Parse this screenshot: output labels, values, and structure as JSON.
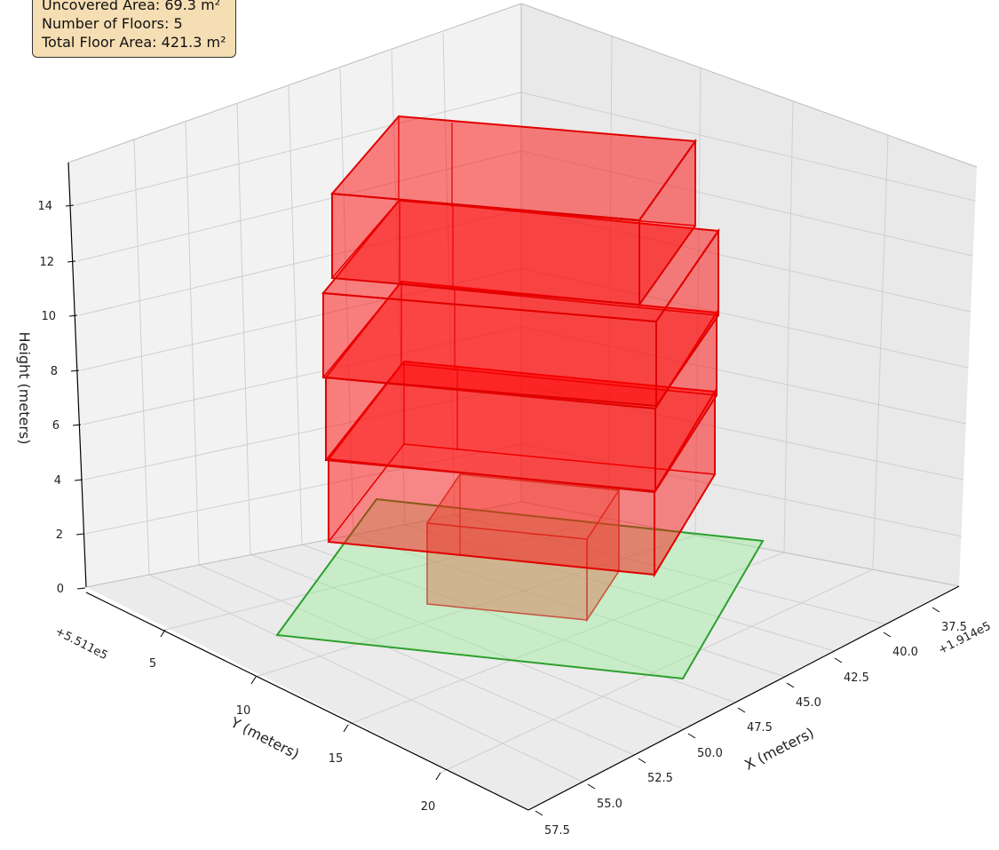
{
  "info_box": [
    "Uncovered Area: 69.3 m²",
    "Number of Floors: 5",
    "Total Floor Area: 421.3 m²"
  ],
  "chart_data": {
    "type": "3d-volume",
    "title": "",
    "xlabel": "X (meters)",
    "ylabel": "Y (meters)",
    "zlabel": "Height (meters)",
    "x_offset_label": "+1.914e5",
    "y_offset_label": "+5.511e5",
    "x_ticks": [
      "37.5",
      "40.0",
      "42.5",
      "45.0",
      "47.5",
      "50.0",
      "52.5",
      "55.0",
      "57.5"
    ],
    "y_ticks": [
      "5",
      "10",
      "15",
      "20"
    ],
    "z_ticks": [
      "0",
      "2",
      "4",
      "6",
      "8",
      "10",
      "12",
      "14"
    ],
    "zlim": [
      0,
      15
    ],
    "grid": true,
    "colors": {
      "floors_fill": "#ff0000",
      "floors_edge": "#e00000",
      "footprint_fill": "#90ee90",
      "footprint_edge": "#2ca02c",
      "ground_block_edge": "#c8503c"
    },
    "series": [
      {
        "name": "",
        "kind": "footprint",
        "z": 0
      },
      {
        "name": "",
        "kind": "ground-block",
        "z_range": [
          0,
          3
        ]
      },
      {
        "name": "",
        "kind": "floor",
        "z_range": [
          3,
          6
        ]
      },
      {
        "name": "",
        "kind": "floor",
        "z_range": [
          6,
          9
        ]
      },
      {
        "name": "",
        "kind": "floor",
        "z_range": [
          9,
          12
        ]
      },
      {
        "name": "",
        "kind": "floor",
        "z_range": [
          12,
          15
        ]
      }
    ]
  }
}
